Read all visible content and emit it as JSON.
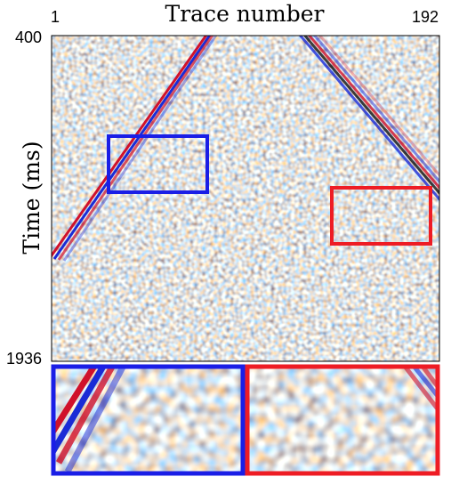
{
  "figure": {
    "x_label": "Trace number",
    "y_label": "Time (ms)",
    "x_ticks": [
      "1",
      "192"
    ],
    "y_ticks": [
      "400",
      "1936"
    ]
  }
}
